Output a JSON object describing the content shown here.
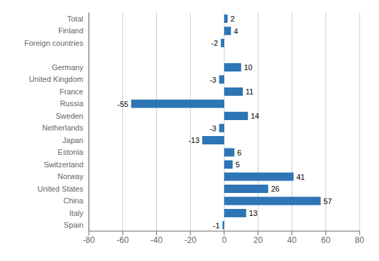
{
  "chart_data": {
    "type": "bar",
    "orientation": "horizontal",
    "categories": [
      "Total",
      "Finland",
      "Foreign countries",
      null,
      "Germany",
      "United Kingdom",
      "France",
      "Russia",
      "Sweden",
      "Netherlands",
      "Japan",
      "Estonia",
      "Switzerland",
      "Norway",
      "United States",
      "China",
      "Italy",
      "Spain"
    ],
    "values": [
      2,
      4,
      -2,
      null,
      10,
      -3,
      11,
      -55,
      14,
      -3,
      -13,
      6,
      5,
      41,
      26,
      57,
      13,
      -1
    ],
    "color": "#2E75B6",
    "xlim": [
      -80,
      80
    ],
    "xticks": [
      -80,
      -60,
      -40,
      -20,
      0,
      20,
      40,
      60,
      80
    ],
    "grid": true,
    "data_labels": true
  }
}
